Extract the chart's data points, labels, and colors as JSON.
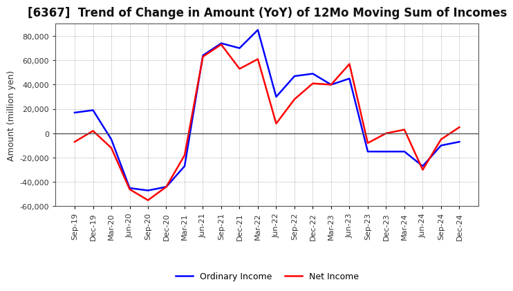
{
  "title": "[6367]  Trend of Change in Amount (YoY) of 12Mo Moving Sum of Incomes",
  "ylabel": "Amount (million yen)",
  "x_labels": [
    "Sep-19",
    "Dec-19",
    "Mar-20",
    "Jun-20",
    "Sep-20",
    "Dec-20",
    "Mar-21",
    "Jun-21",
    "Sep-21",
    "Dec-21",
    "Mar-22",
    "Jun-22",
    "Sep-22",
    "Dec-22",
    "Mar-23",
    "Jun-23",
    "Sep-23",
    "Dec-23",
    "Mar-24",
    "Jun-24",
    "Sep-24",
    "Dec-24"
  ],
  "ordinary_income": [
    17000,
    19000,
    -5000,
    -45000,
    -47000,
    -44000,
    -27000,
    64000,
    74000,
    70000,
    85000,
    30000,
    47000,
    49000,
    40000,
    45000,
    -15000,
    -15000,
    -15000,
    -27000,
    -10000,
    -7000
  ],
  "net_income": [
    -7000,
    2000,
    -12000,
    -46000,
    -55000,
    -44000,
    -18000,
    63000,
    73000,
    53000,
    61000,
    8000,
    28000,
    41000,
    40000,
    57000,
    -8000,
    0,
    3000,
    -30000,
    -5000,
    5000
  ],
  "ordinary_color": "#0000ff",
  "net_color": "#ff0000",
  "ylim": [
    -60000,
    90000
  ],
  "yticks": [
    -60000,
    -40000,
    -20000,
    0,
    20000,
    40000,
    60000,
    80000
  ],
  "background_color": "#ffffff",
  "grid_color": "#888888",
  "title_fontsize": 12,
  "axis_label_fontsize": 9,
  "tick_fontsize": 8,
  "legend_fontsize": 9,
  "line_width": 1.8
}
